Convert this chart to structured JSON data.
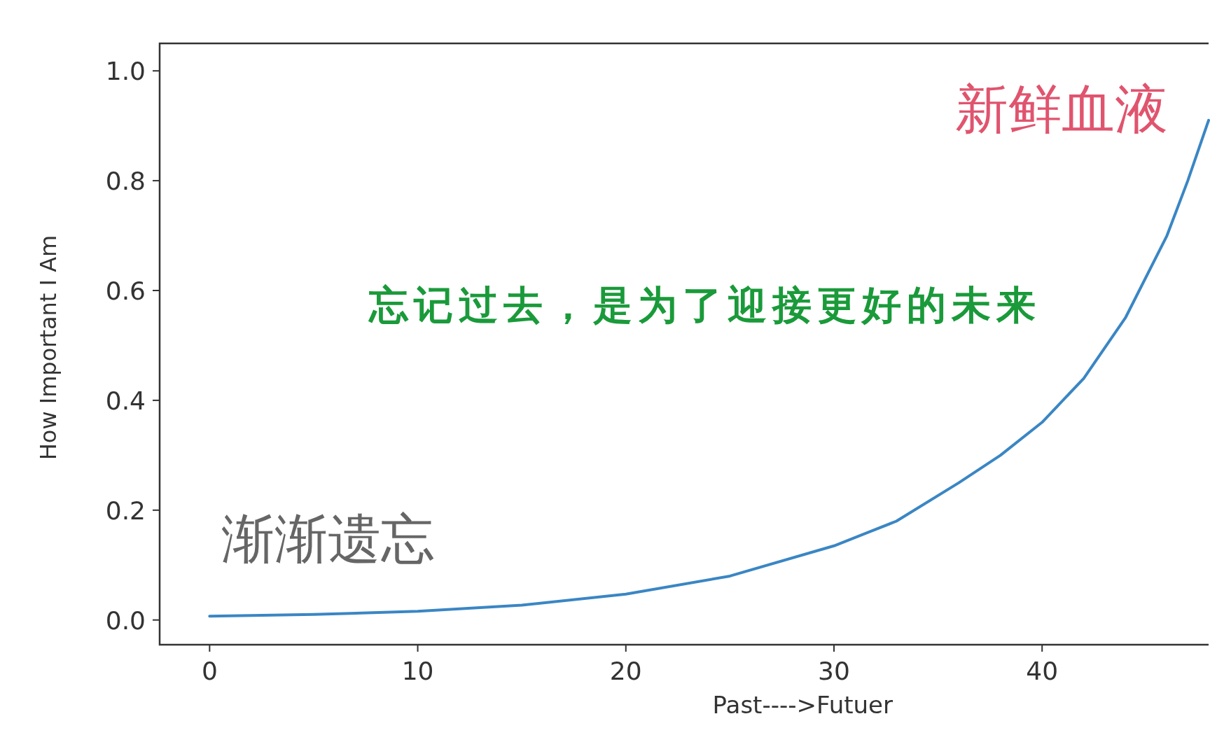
{
  "chart_data": {
    "type": "line",
    "xlabel": "Past---->Futuer",
    "ylabel": "How Important I Am",
    "x": [
      0,
      5,
      10,
      15,
      20,
      25,
      30,
      33,
      36,
      38,
      40,
      42,
      44,
      46,
      47,
      48
    ],
    "series": [
      {
        "color": "#3a86c4",
        "values": [
          0.007,
          0.01,
          0.016,
          0.027,
          0.047,
          0.08,
          0.135,
          0.18,
          0.25,
          0.3,
          0.36,
          0.44,
          0.55,
          0.7,
          0.8,
          0.91
        ]
      }
    ],
    "xlim": [
      -2.4,
      48
    ],
    "ylim": [
      -0.045,
      1.05
    ],
    "xticks": [
      0,
      10,
      20,
      30,
      40
    ],
    "yticks": [
      {
        "value": 0,
        "label": "0.0"
      },
      {
        "value": 0.2,
        "label": "0.2"
      },
      {
        "value": 0.4,
        "label": "0.4"
      },
      {
        "value": 0.6,
        "label": "0.6"
      },
      {
        "value": 0.8,
        "label": "0.8"
      },
      {
        "value": 1,
        "label": "1.0"
      }
    ],
    "annotations": [
      "新鲜血液",
      "忘记过去，是为了迎接更好的未来",
      "渐渐遗忘"
    ]
  }
}
